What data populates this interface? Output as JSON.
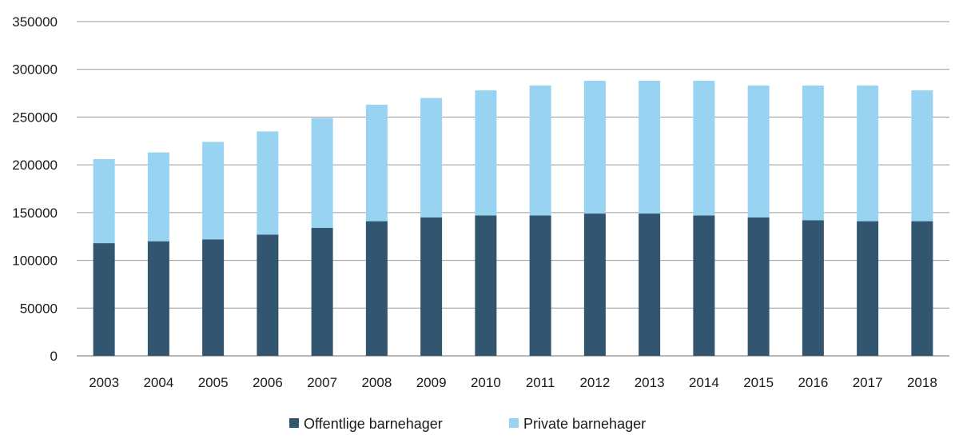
{
  "chart_data": {
    "type": "bar",
    "stacked": true,
    "title": "",
    "xlabel": "",
    "ylabel": "",
    "ylim": [
      0,
      350000
    ],
    "yticks": [
      0,
      50000,
      100000,
      150000,
      200000,
      250000,
      300000,
      350000
    ],
    "grid": true,
    "legend_position": "bottom",
    "categories": [
      "2003",
      "2004",
      "2005",
      "2006",
      "2007",
      "2008",
      "2009",
      "2010",
      "2011",
      "2012",
      "2013",
      "2014",
      "2015",
      "2016",
      "2017",
      "2018"
    ],
    "series": [
      {
        "name": "Offentlige barnehager",
        "color": "#32566f",
        "values": [
          118000,
          120000,
          122000,
          127000,
          134000,
          141000,
          145000,
          147000,
          147000,
          149000,
          149000,
          147000,
          145000,
          142000,
          141000,
          141000
        ]
      },
      {
        "name": "Private barnehager",
        "color": "#99d3f2",
        "values": [
          88000,
          93000,
          102000,
          108000,
          115000,
          122000,
          125000,
          131000,
          136000,
          139000,
          139000,
          141000,
          138000,
          141000,
          142000,
          137000
        ]
      }
    ]
  }
}
